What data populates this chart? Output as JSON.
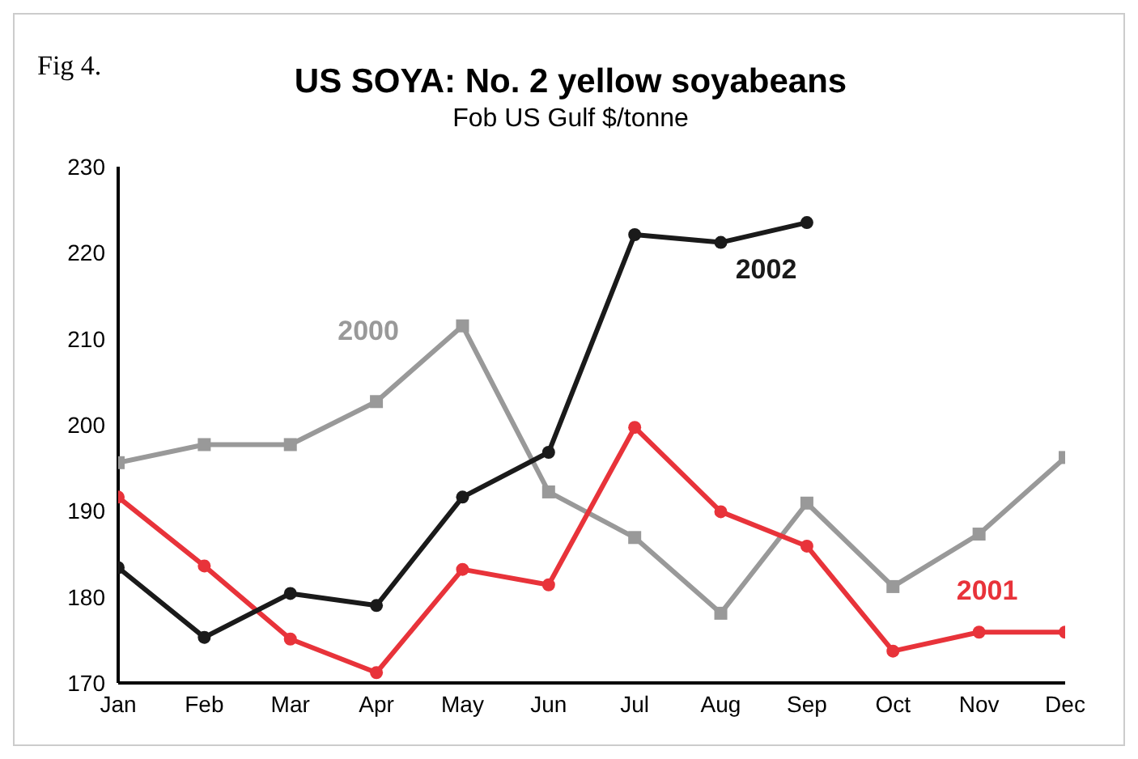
{
  "chart_data": {
    "type": "line",
    "title": "US SOYA: No. 2 yellow soyabeans",
    "subtitle": "Fob US Gulf $/tonne",
    "annotations": [
      "Fig 4."
    ],
    "categories": [
      "Jan",
      "Feb",
      "Mar",
      "Apr",
      "May",
      "Jun",
      "Jul",
      "Aug",
      "Sep",
      "Oct",
      "Nov",
      "Dec"
    ],
    "series": [
      {
        "name": "2000",
        "color": "#999999",
        "marker": "square",
        "values": [
          195.6,
          197.7,
          197.7,
          202.7,
          211.5,
          192.2,
          186.9,
          178.1,
          190.9,
          181.2,
          187.3,
          196.2
        ]
      },
      {
        "name": "2001",
        "color": "#e8333a",
        "marker": "circle",
        "values": [
          191.6,
          183.6,
          175.1,
          171.2,
          183.2,
          181.4,
          199.7,
          189.9,
          185.9,
          173.7,
          175.9,
          175.9
        ]
      },
      {
        "name": "2002",
        "color": "#1a1a1a",
        "marker": "circle",
        "values": [
          183.4,
          175.3,
          180.4,
          179.0,
          191.6,
          196.8,
          222.1,
          221.2,
          223.5,
          null,
          null,
          null
        ]
      }
    ],
    "ylim": [
      170,
      230
    ],
    "yticks": [
      170,
      180,
      190,
      200,
      210,
      220,
      230
    ],
    "grid": false,
    "legend": false
  }
}
